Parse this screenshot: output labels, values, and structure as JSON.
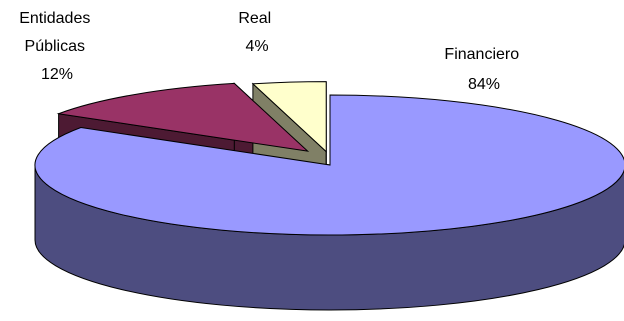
{
  "chart_data": {
    "type": "pie",
    "style": "3d-exploded",
    "title": "",
    "slices": [
      {
        "label_lines": [
          "Financiero"
        ],
        "value": 84,
        "value_label": "84%",
        "color": "#9999ff",
        "side_color": "#4d4d80"
      },
      {
        "label_lines": [
          "Entidades",
          "Públicas"
        ],
        "value": 12,
        "value_label": "12%",
        "color": "#993366",
        "side_color": "#4d1a33"
      },
      {
        "label_lines": [
          "Real"
        ],
        "value": 4,
        "value_label": "4%",
        "color": "#ffffcc",
        "side_color": "#808066"
      }
    ],
    "legend": "none"
  }
}
